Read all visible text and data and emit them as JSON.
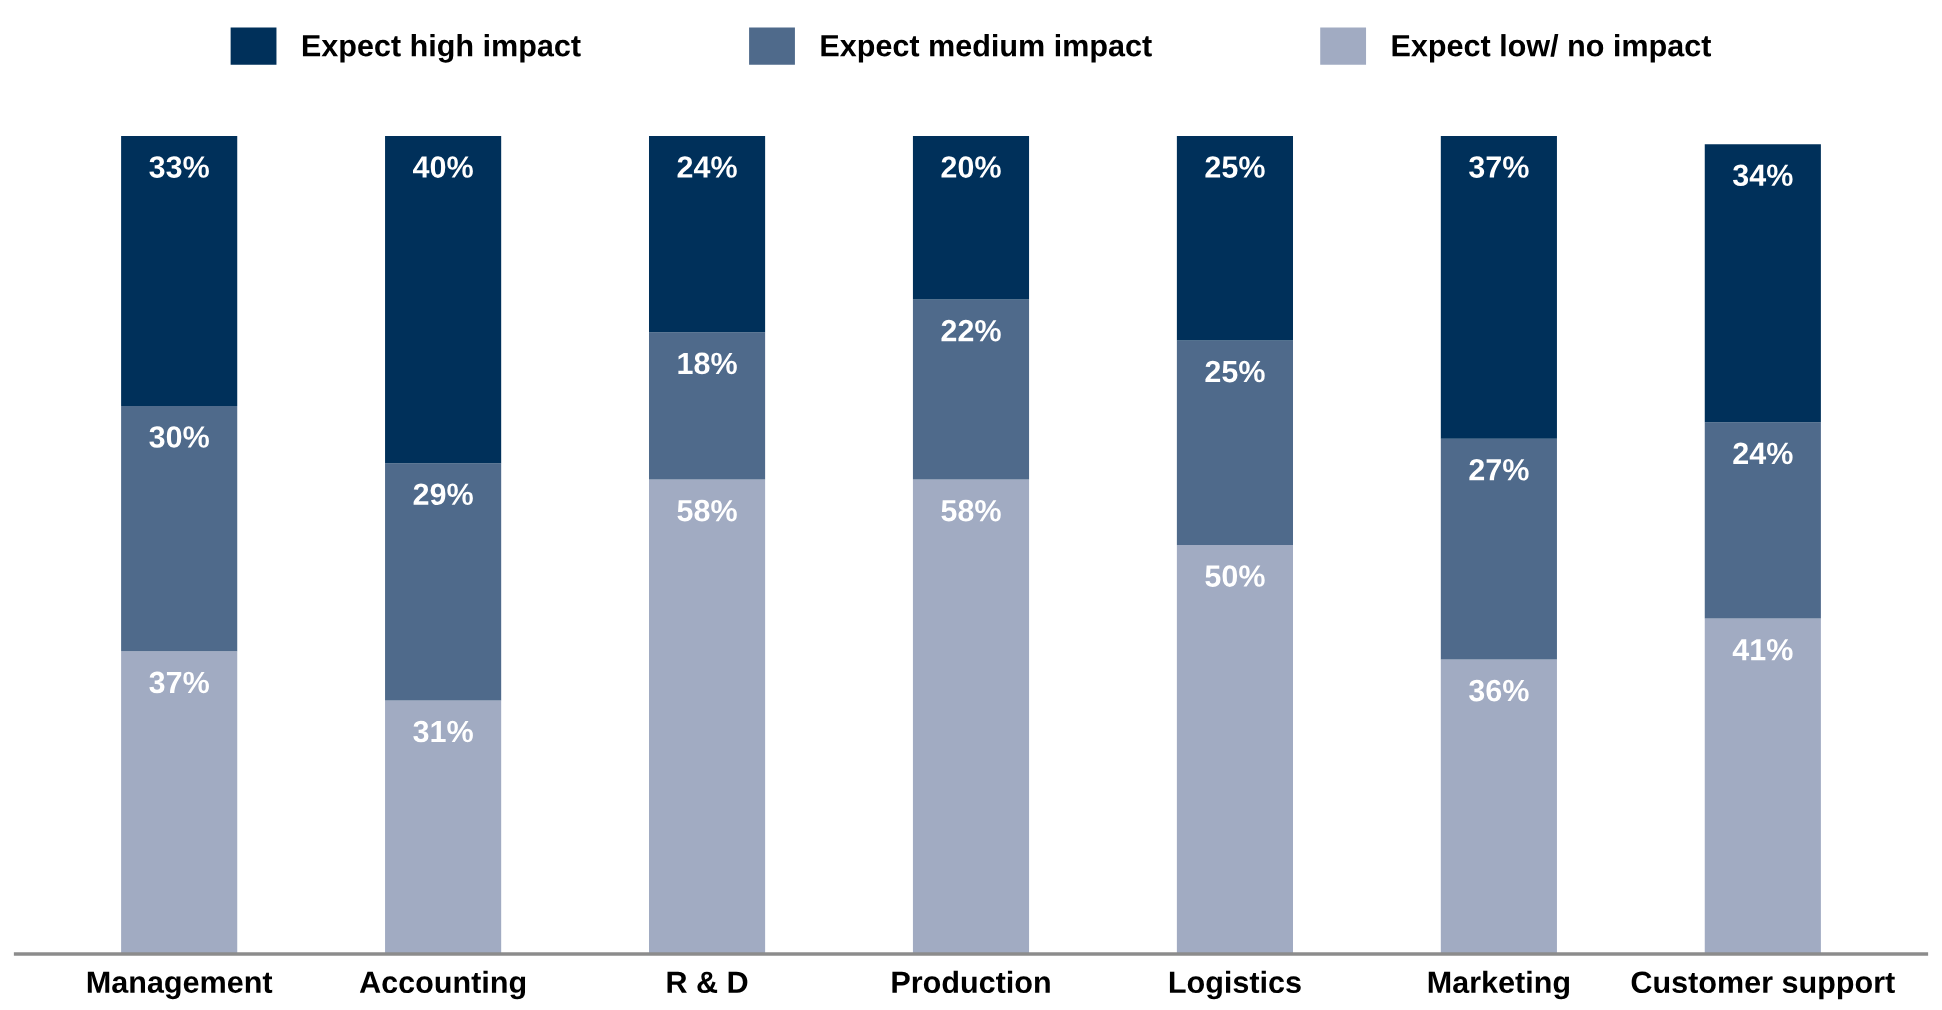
{
  "chart_data": {
    "type": "bar",
    "stacked": true,
    "categories": [
      "Management",
      "Accounting",
      "R & D",
      "Production",
      "Logistics",
      "Marketing",
      "Customer support"
    ],
    "series": [
      {
        "name": "Expect low/ no impact",
        "color": "#a1abc2",
        "values": [
          37,
          31,
          58,
          58,
          50,
          36,
          41
        ],
        "value_labels": [
          "37%",
          "31%",
          "58%",
          "58%",
          "50%",
          "36%",
          "41%"
        ]
      },
      {
        "name": "Expect medium impact",
        "color": "#4f6a8b",
        "values": [
          30,
          29,
          18,
          22,
          25,
          27,
          24
        ],
        "value_labels": [
          "30%",
          "29%",
          "18%",
          "22%",
          "25%",
          "27%",
          "24%"
        ]
      },
      {
        "name": "Expect high impact",
        "color": "#00305a",
        "values": [
          33,
          40,
          24,
          20,
          25,
          37,
          34
        ],
        "value_labels": [
          "33%",
          "40%",
          "24%",
          "20%",
          "25%",
          "37%",
          "34%"
        ]
      }
    ],
    "ylim": [
      0,
      100
    ],
    "legend": "top",
    "grid": false
  }
}
